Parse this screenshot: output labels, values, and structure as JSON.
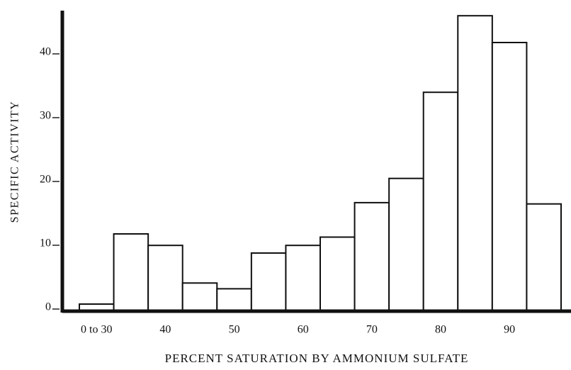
{
  "chart_data": {
    "type": "bar",
    "x_label": "PERCENT SATURATION BY AMMONIUM SULFATE",
    "y_label": "SPECIFIC ACTIVITY",
    "categories": [
      "0 to 30",
      null,
      "40",
      null,
      "50",
      null,
      "60",
      null,
      "70",
      null,
      "80",
      null,
      "90",
      null
    ],
    "values": [
      1,
      12,
      10.2,
      4.3,
      3.4,
      9,
      10.2,
      11.5,
      16.9,
      20.7,
      34.2,
      46.2,
      42,
      16.7
    ],
    "color": "#ffffff",
    "ylim": [
      0,
      47
    ],
    "yticks": [
      0,
      10,
      20,
      30,
      40
    ],
    "grid": false
  }
}
